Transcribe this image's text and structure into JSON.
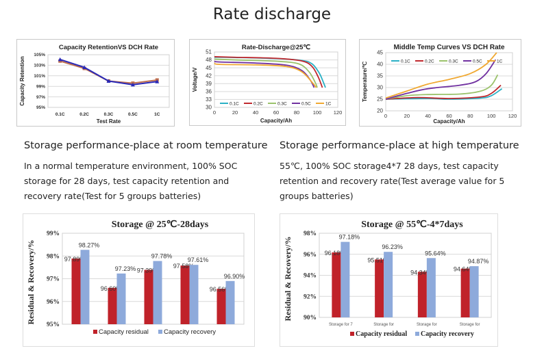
{
  "page_title": "Rate discharge",
  "sections": [
    {
      "heading": "Storage performance-place at room temperature",
      "lines": [
        "In a normal temperature environment, 100% SOC",
        "storage for 28 days, test capacity retention and",
        "recovery rate(Test for 5 groups batteries)"
      ]
    },
    {
      "heading": "Storage performance-place at high temperature",
      "lines": [
        "55℃, 100% SOC storage4*7 28 days, test capacity",
        "retention and recovery rate(Test average value for 5",
        "groups batteries)"
      ]
    }
  ],
  "chart_data": [
    {
      "type": "line",
      "title": "Capacity RetentionVS DCH  Rate",
      "xlabel": "Test Rate",
      "ylabel": "Capacity Retention",
      "categories": [
        "0.1C",
        "0.2C",
        "0.3C",
        "0.5C",
        "1C"
      ],
      "ylim": [
        95,
        105
      ],
      "yticks": [
        "95%",
        "97%",
        "99%",
        "101%",
        "103%",
        "105%"
      ],
      "grid": true,
      "legend": "none",
      "series": [
        {
          "values": [
            103.8,
            102.4,
            100.0,
            99.6,
            100.2
          ],
          "color": "#c0704f"
        },
        {
          "values": [
            104.1,
            102.6,
            100.0,
            99.3,
            99.9
          ],
          "color": "#2a2ab8"
        }
      ]
    },
    {
      "type": "line",
      "title": "Rate-Discharge@25℃",
      "xlabel": "Capacity/Ah",
      "ylabel": "Voltage/V",
      "xlim": [
        0,
        120
      ],
      "xticks": [
        "0",
        "20",
        "40",
        "60",
        "80",
        "100",
        "120"
      ],
      "ylim": [
        30,
        51
      ],
      "yticks": [
        "30",
        "33",
        "36",
        "39",
        "42",
        "45",
        "48",
        "51"
      ],
      "grid": true,
      "legend": "bottom",
      "series": [
        {
          "name": "0.1C",
          "color": "#2ab0c5",
          "points": [
            [
              0,
              49
            ],
            [
              20,
              48.9
            ],
            [
              60,
              48.5
            ],
            [
              85,
              47.8
            ],
            [
              95,
              46.5
            ],
            [
              102,
              43
            ],
            [
              106,
              39.5
            ],
            [
              108,
              37.5
            ]
          ]
        },
        {
          "name": "0.2C",
          "color": "#c0282d",
          "points": [
            [
              0,
              49.2
            ],
            [
              20,
              49
            ],
            [
              60,
              48.6
            ],
            [
              85,
              47.6
            ],
            [
              95,
              45.5
            ],
            [
              101,
              41.5
            ],
            [
              105,
              37.5
            ]
          ]
        },
        {
          "name": "0.3C",
          "color": "#9bc26b",
          "points": [
            [
              0,
              48.3
            ],
            [
              20,
              48
            ],
            [
              60,
              47.5
            ],
            [
              82,
              46.5
            ],
            [
              92,
              43.5
            ],
            [
              98,
              39.5
            ],
            [
              100,
              37.5
            ]
          ]
        },
        {
          "name": "0.5C",
          "color": "#7030a0",
          "points": [
            [
              0,
              47.5
            ],
            [
              5,
              47.2
            ],
            [
              40,
              46.8
            ],
            [
              70,
              46
            ],
            [
              85,
              44
            ],
            [
              93,
              40.5
            ],
            [
              97,
              37.5
            ]
          ]
        },
        {
          "name": "1C",
          "color": "#f0a830",
          "points": [
            [
              0,
              46.8
            ],
            [
              5,
              46.3
            ],
            [
              40,
              46.1
            ],
            [
              70,
              45.5
            ],
            [
              85,
              43.5
            ],
            [
              95,
              39.5
            ],
            [
              99,
              37.5
            ]
          ]
        }
      ]
    },
    {
      "type": "line",
      "title": "Middle Temp Curves VS DCH Rate",
      "xlabel": "Capacity/Ah",
      "ylabel": "Temperature/℃",
      "xlim": [
        0,
        120
      ],
      "xticks": [
        "0",
        "20",
        "40",
        "60",
        "80",
        "100",
        "120"
      ],
      "ylim": [
        20,
        45
      ],
      "yticks": [
        "20",
        "25",
        "30",
        "35",
        "40",
        "45"
      ],
      "grid": true,
      "legend": "top",
      "series": [
        {
          "name": "0.1C",
          "color": "#2ab0c5",
          "points": [
            [
              0,
              25
            ],
            [
              40,
              25.3
            ],
            [
              60,
              25
            ],
            [
              90,
              25.5
            ],
            [
              100,
              26.5
            ],
            [
              110,
              29.5
            ]
          ]
        },
        {
          "name": "0.2C",
          "color": "#c0282d",
          "points": [
            [
              0,
              25
            ],
            [
              30,
              25.7
            ],
            [
              60,
              25.3
            ],
            [
              90,
              26
            ],
            [
              100,
              27.5
            ],
            [
              109,
              31
            ]
          ]
        },
        {
          "name": "0.3C",
          "color": "#9bc26b",
          "points": [
            [
              0,
              25
            ],
            [
              20,
              26.5
            ],
            [
              40,
              27
            ],
            [
              70,
              27.2
            ],
            [
              90,
              28.5
            ],
            [
              100,
              31
            ],
            [
              106,
              35.5
            ]
          ]
        },
        {
          "name": "0.5C",
          "color": "#7030a0",
          "points": [
            [
              0,
              25
            ],
            [
              20,
              27.5
            ],
            [
              40,
              29.5
            ],
            [
              70,
              31
            ],
            [
              85,
              32.5
            ],
            [
              95,
              36
            ],
            [
              104,
              42
            ]
          ]
        },
        {
          "name": "1C",
          "color": "#f0a830",
          "points": [
            [
              0,
              25.5
            ],
            [
              20,
              28.5
            ],
            [
              40,
              31.5
            ],
            [
              60,
              33.5
            ],
            [
              80,
              36
            ],
            [
              95,
              40
            ],
            [
              105,
              45
            ]
          ]
        }
      ]
    },
    {
      "type": "bar",
      "title": "Storage @ 25℃-28days",
      "ylabel": "Residual & Recovery/%",
      "categories": [
        "",
        "",
        "",
        "",
        ""
      ],
      "ylim": [
        95,
        99
      ],
      "yticks": [
        "95%",
        "96%",
        "97%",
        "98%",
        "99%"
      ],
      "grid": true,
      "legend": "bottom",
      "series": [
        {
          "name": "Capacity residual",
          "color": "#c0222a",
          "values": [
            97.89,
            96.6,
            97.39,
            97.58,
            96.56
          ],
          "labels": [
            "97.89%",
            "96.60%",
            "97.39%",
            "97.58%",
            "96.56%"
          ]
        },
        {
          "name": "Capacity recovery",
          "color": "#8eaadb",
          "values": [
            98.27,
            97.23,
            97.78,
            97.61,
            96.9
          ],
          "labels": [
            "98.27%",
            "97.23%",
            "97.78%",
            "97.61%",
            "96.90%"
          ]
        }
      ]
    },
    {
      "type": "bar",
      "title": "Storage @ 55℃-4*7days",
      "ylabel": "Residual & Recovery/%",
      "categories": [
        "Storage for 7",
        "Storage for",
        "Storage for",
        "Storage for"
      ],
      "ylim": [
        90,
        98
      ],
      "yticks": [
        "90%",
        "92%",
        "94%",
        "96%",
        "98%"
      ],
      "grid": true,
      "legend": "bottom",
      "series": [
        {
          "name": "Capacity residual",
          "color": "#c0222a",
          "values": [
            96.18,
            95.51,
            94.34,
            94.64
          ],
          "labels": [
            "96.18%",
            "95.51%",
            "94.34%",
            "94.64%"
          ]
        },
        {
          "name": "Capacity recovery",
          "color": "#8eaadb",
          "values": [
            97.18,
            96.23,
            95.64,
            94.87
          ],
          "labels": [
            "97.18%",
            "96.23%",
            "95.64%",
            "94.87%"
          ]
        }
      ]
    }
  ]
}
